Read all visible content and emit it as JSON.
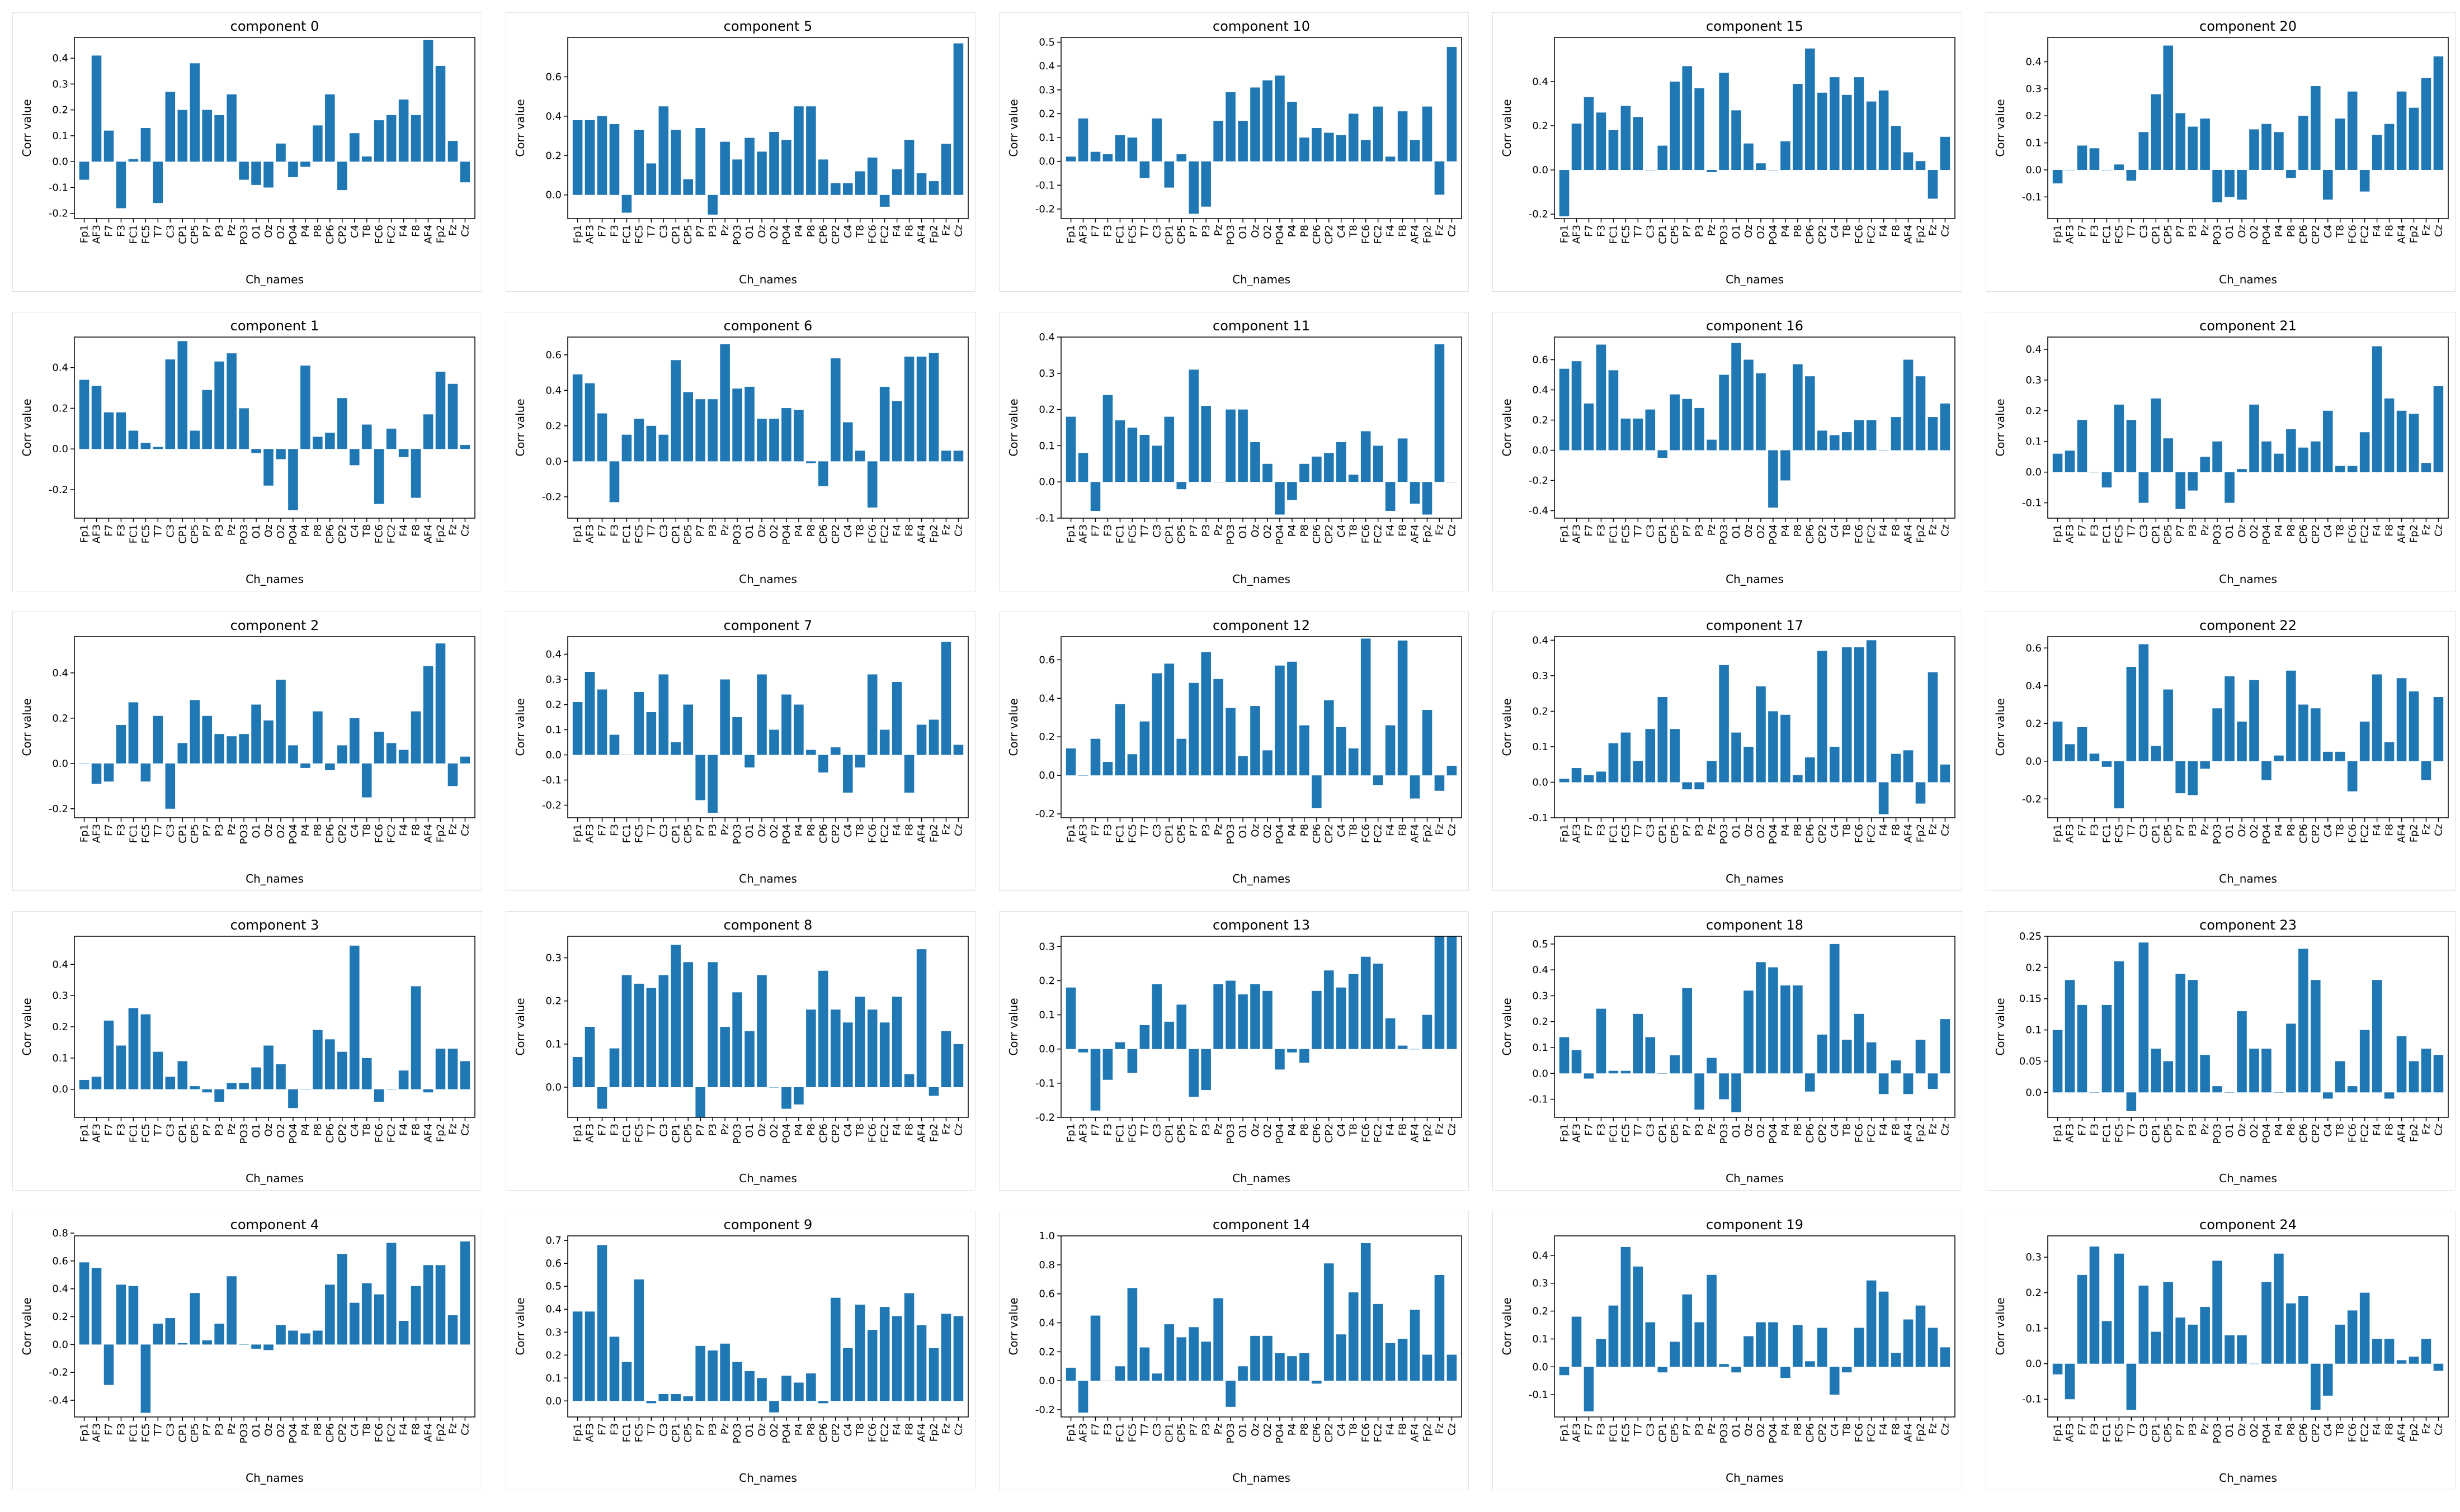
{
  "theme": {
    "bar_color": "#1f77b4",
    "axis_color": "#000000",
    "background": "#ffffff"
  },
  "channels": [
    "Fp1",
    "AF3",
    "F7",
    "F3",
    "FC1",
    "FC5",
    "T7",
    "C3",
    "CP1",
    "CP5",
    "P7",
    "P3",
    "Pz",
    "PO3",
    "O1",
    "Oz",
    "O2",
    "PO4",
    "P4",
    "P8",
    "CP6",
    "CP2",
    "C4",
    "T8",
    "FC6",
    "FC2",
    "F4",
    "F8",
    "AF4",
    "Fp2",
    "Fz",
    "Cz"
  ],
  "chart_data": [
    {
      "type": "bar",
      "title": "component 0",
      "xlabel": "Ch_names",
      "ylabel": "Corr value",
      "ylim": [
        -0.22,
        0.48
      ],
      "yticks": [
        -0.2,
        -0.1,
        0.0,
        0.1,
        0.2,
        0.3,
        0.4
      ],
      "values": [
        -0.07,
        0.41,
        0.12,
        -0.18,
        0.01,
        0.13,
        -0.16,
        0.27,
        0.2,
        0.38,
        0.2,
        0.18,
        0.26,
        -0.07,
        -0.09,
        -0.1,
        0.07,
        -0.06,
        -0.02,
        0.14,
        0.26,
        -0.11,
        0.11,
        0.02,
        0.16,
        0.18,
        0.24,
        0.18,
        0.47,
        0.37,
        0.08,
        -0.08
      ]
    },
    {
      "type": "bar",
      "title": "component 1",
      "xlabel": "Ch_names",
      "ylabel": "Corr value",
      "ylim": [
        -0.34,
        0.55
      ],
      "yticks": [
        -0.2,
        0.0,
        0.2,
        0.4
      ],
      "values": [
        0.34,
        0.31,
        0.18,
        0.18,
        0.09,
        0.03,
        0.01,
        0.44,
        0.53,
        0.09,
        0.29,
        0.43,
        0.47,
        0.2,
        -0.02,
        -0.18,
        -0.05,
        -0.3,
        0.41,
        0.06,
        0.08,
        0.25,
        -0.08,
        0.12,
        -0.27,
        0.1,
        -0.04,
        -0.24,
        0.17,
        0.38,
        0.32,
        0.02
      ]
    },
    {
      "type": "bar",
      "title": "component 2",
      "xlabel": "Ch_names",
      "ylabel": "Corr value",
      "ylim": [
        -0.24,
        0.56
      ],
      "yticks": [
        -0.2,
        0.0,
        0.2,
        0.4
      ],
      "values": [
        0.0,
        -0.09,
        -0.08,
        0.17,
        0.27,
        -0.08,
        0.21,
        -0.2,
        0.09,
        0.28,
        0.21,
        0.13,
        0.12,
        0.13,
        0.26,
        0.19,
        0.37,
        0.08,
        -0.02,
        0.23,
        -0.03,
        0.08,
        0.2,
        -0.15,
        0.14,
        0.09,
        0.06,
        0.23,
        0.43,
        0.53,
        -0.1,
        0.03
      ]
    },
    {
      "type": "bar",
      "title": "component 3",
      "xlabel": "Ch_names",
      "ylabel": "Corr value",
      "ylim": [
        -0.09,
        0.49
      ],
      "yticks": [
        0.0,
        0.1,
        0.2,
        0.3,
        0.4
      ],
      "values": [
        0.03,
        0.04,
        0.22,
        0.14,
        0.26,
        0.24,
        0.12,
        0.04,
        0.09,
        0.01,
        -0.01,
        -0.04,
        0.02,
        0.02,
        0.07,
        0.14,
        0.08,
        -0.06,
        0.0,
        0.19,
        0.16,
        0.12,
        0.46,
        0.1,
        -0.04,
        0.0,
        0.06,
        0.33,
        -0.01,
        0.13,
        0.13,
        0.09
      ]
    },
    {
      "type": "bar",
      "title": "component 4",
      "xlabel": "Ch_names",
      "ylabel": "Corr value",
      "ylim": [
        -0.52,
        0.78
      ],
      "yticks": [
        -0.4,
        -0.2,
        0.0,
        0.2,
        0.4,
        0.6,
        0.8
      ],
      "values": [
        0.59,
        0.55,
        -0.29,
        0.43,
        0.42,
        -0.49,
        0.15,
        0.19,
        0.01,
        0.37,
        0.03,
        0.15,
        0.49,
        0.0,
        -0.03,
        -0.04,
        0.14,
        0.1,
        0.08,
        0.1,
        0.43,
        0.65,
        0.3,
        0.44,
        0.36,
        0.73,
        0.17,
        0.42,
        0.57,
        0.57,
        0.21,
        0.74
      ]
    },
    {
      "type": "bar",
      "title": "component 5",
      "xlabel": "Ch_names",
      "ylabel": "Corr value",
      "ylim": [
        -0.12,
        0.8
      ],
      "yticks": [
        0.0,
        0.2,
        0.4,
        0.6
      ],
      "values": [
        0.38,
        0.38,
        0.4,
        0.36,
        -0.09,
        0.33,
        0.16,
        0.45,
        0.33,
        0.08,
        0.34,
        -0.1,
        0.27,
        0.18,
        0.29,
        0.22,
        0.32,
        0.28,
        0.45,
        0.45,
        0.18,
        0.06,
        0.06,
        0.12,
        0.19,
        -0.06,
        0.13,
        0.28,
        0.11,
        0.07,
        0.26,
        0.77
      ]
    },
    {
      "type": "bar",
      "title": "component 6",
      "xlabel": "Ch_names",
      "ylabel": "Corr value",
      "ylim": [
        -0.32,
        0.7
      ],
      "yticks": [
        -0.2,
        0.0,
        0.2,
        0.4,
        0.6
      ],
      "values": [
        0.49,
        0.44,
        0.27,
        -0.23,
        0.15,
        0.24,
        0.2,
        0.15,
        0.57,
        0.39,
        0.35,
        0.35,
        0.66,
        0.41,
        0.42,
        0.24,
        0.24,
        0.3,
        0.29,
        -0.01,
        -0.14,
        0.58,
        0.22,
        0.06,
        -0.26,
        0.42,
        0.34,
        0.59,
        0.59,
        0.61,
        0.06,
        0.06
      ]
    },
    {
      "type": "bar",
      "title": "component 7",
      "xlabel": "Ch_names",
      "ylabel": "Corr value",
      "ylim": [
        -0.25,
        0.47
      ],
      "yticks": [
        -0.2,
        -0.1,
        0.0,
        0.1,
        0.2,
        0.3,
        0.4
      ],
      "values": [
        0.21,
        0.33,
        0.26,
        0.08,
        0.0,
        0.25,
        0.17,
        0.32,
        0.05,
        0.2,
        -0.18,
        -0.23,
        0.3,
        0.15,
        -0.05,
        0.32,
        0.1,
        0.24,
        0.2,
        0.02,
        -0.07,
        0.03,
        -0.15,
        -0.05,
        0.32,
        0.1,
        0.29,
        -0.15,
        0.12,
        0.14,
        0.45,
        0.04
      ]
    },
    {
      "type": "bar",
      "title": "component 8",
      "xlabel": "Ch_names",
      "ylabel": "Corr value",
      "ylim": [
        -0.07,
        0.35
      ],
      "yticks": [
        0.0,
        0.1,
        0.2,
        0.3
      ],
      "values": [
        0.07,
        0.14,
        -0.05,
        0.09,
        0.26,
        0.24,
        0.23,
        0.26,
        0.33,
        0.29,
        -0.07,
        0.29,
        0.14,
        0.22,
        0.13,
        0.26,
        0.0,
        -0.05,
        -0.04,
        0.18,
        0.27,
        0.18,
        0.15,
        0.21,
        0.18,
        0.15,
        0.21,
        0.03,
        0.32,
        -0.02,
        0.13,
        0.1
      ]
    },
    {
      "type": "bar",
      "title": "component 9",
      "xlabel": "Ch_names",
      "ylabel": "Corr value",
      "ylim": [
        -0.07,
        0.72
      ],
      "yticks": [
        0.0,
        0.1,
        0.2,
        0.3,
        0.4,
        0.5,
        0.6,
        0.7
      ],
      "values": [
        0.39,
        0.39,
        0.68,
        0.28,
        0.17,
        0.53,
        -0.01,
        0.03,
        0.03,
        0.02,
        0.24,
        0.22,
        0.25,
        0.17,
        0.13,
        0.1,
        -0.05,
        0.11,
        0.08,
        0.12,
        -0.01,
        0.45,
        0.23,
        0.42,
        0.31,
        0.41,
        0.37,
        0.47,
        0.33,
        0.23,
        0.38,
        0.37
      ]
    },
    {
      "type": "bar",
      "title": "component 10",
      "xlabel": "Ch_names",
      "ylabel": "Corr value",
      "ylim": [
        -0.24,
        0.52
      ],
      "yticks": [
        -0.2,
        -0.1,
        0.0,
        0.1,
        0.2,
        0.3,
        0.4,
        0.5
      ],
      "values": [
        0.02,
        0.18,
        0.04,
        0.03,
        0.11,
        0.1,
        -0.07,
        0.18,
        -0.11,
        0.03,
        -0.22,
        -0.19,
        0.17,
        0.29,
        0.17,
        0.31,
        0.34,
        0.36,
        0.25,
        0.1,
        0.14,
        0.12,
        0.11,
        0.2,
        0.09,
        0.23,
        0.02,
        0.21,
        0.09,
        0.23,
        -0.14,
        0.48
      ]
    },
    {
      "type": "bar",
      "title": "component 11",
      "xlabel": "Ch_names",
      "ylabel": "Corr value",
      "ylim": [
        -0.1,
        0.4
      ],
      "yticks": [
        -0.1,
        0.0,
        0.1,
        0.2,
        0.3,
        0.4
      ],
      "values": [
        0.18,
        0.08,
        -0.08,
        0.24,
        0.17,
        0.15,
        0.13,
        0.1,
        0.18,
        -0.02,
        0.31,
        0.21,
        0.0,
        0.2,
        0.2,
        0.11,
        0.05,
        -0.09,
        -0.05,
        0.05,
        0.07,
        0.08,
        0.11,
        0.02,
        0.14,
        0.1,
        -0.08,
        0.12,
        -0.06,
        -0.09,
        0.38,
        0.0
      ]
    },
    {
      "type": "bar",
      "title": "component 12",
      "xlabel": "Ch_names",
      "ylabel": "Corr value",
      "ylim": [
        -0.22,
        0.72
      ],
      "yticks": [
        -0.2,
        0.0,
        0.2,
        0.4,
        0.6
      ],
      "values": [
        0.14,
        0.0,
        0.19,
        0.07,
        0.37,
        0.11,
        0.28,
        0.53,
        0.58,
        0.19,
        0.48,
        0.64,
        0.5,
        0.35,
        0.1,
        0.36,
        0.13,
        0.57,
        0.59,
        0.26,
        -0.17,
        0.39,
        0.25,
        0.14,
        0.71,
        -0.05,
        0.26,
        0.7,
        -0.12,
        0.34,
        -0.08,
        0.05
      ]
    },
    {
      "type": "bar",
      "title": "component 13",
      "xlabel": "Ch_names",
      "ylabel": "Corr value",
      "ylim": [
        -0.2,
        0.33
      ],
      "yticks": [
        -0.2,
        -0.1,
        0.0,
        0.1,
        0.2,
        0.3
      ],
      "values": [
        0.18,
        -0.01,
        -0.18,
        -0.09,
        0.02,
        -0.07,
        0.07,
        0.19,
        0.08,
        0.13,
        -0.14,
        -0.12,
        0.19,
        0.2,
        0.16,
        0.19,
        0.17,
        -0.06,
        -0.01,
        -0.04,
        0.17,
        0.23,
        0.18,
        0.22,
        0.27,
        0.25,
        0.09,
        0.01,
        0.0,
        0.1,
        0.33,
        0.33
      ]
    },
    {
      "type": "bar",
      "title": "component 14",
      "xlabel": "Ch_names",
      "ylabel": "Corr value",
      "ylim": [
        -0.25,
        1.0
      ],
      "yticks": [
        -0.2,
        0.0,
        0.2,
        0.4,
        0.6,
        0.8,
        1.0
      ],
      "values": [
        0.09,
        -0.22,
        0.45,
        0.0,
        0.1,
        0.64,
        0.23,
        0.05,
        0.39,
        0.3,
        0.37,
        0.27,
        0.57,
        -0.18,
        0.1,
        0.31,
        0.31,
        0.19,
        0.17,
        0.19,
        -0.02,
        0.81,
        0.32,
        0.61,
        0.95,
        0.53,
        0.26,
        0.29,
        0.49,
        0.18,
        0.73,
        0.18
      ]
    },
    {
      "type": "bar",
      "title": "component 15",
      "xlabel": "Ch_names",
      "ylabel": "Corr value",
      "ylim": [
        -0.22,
        0.6
      ],
      "yticks": [
        -0.2,
        0.0,
        0.2,
        0.4
      ],
      "values": [
        -0.21,
        0.21,
        0.33,
        0.26,
        0.18,
        0.29,
        0.24,
        0.0,
        0.11,
        0.4,
        0.47,
        0.37,
        -0.01,
        0.44,
        0.27,
        0.12,
        0.03,
        0.0,
        0.13,
        0.39,
        0.55,
        0.35,
        0.42,
        0.34,
        0.42,
        0.31,
        0.36,
        0.2,
        0.08,
        0.04,
        -0.13,
        0.15
      ]
    },
    {
      "type": "bar",
      "title": "component 16",
      "xlabel": "Ch_names",
      "ylabel": "Corr value",
      "ylim": [
        -0.45,
        0.75
      ],
      "yticks": [
        -0.4,
        -0.2,
        0.0,
        0.2,
        0.4,
        0.6
      ],
      "values": [
        0.54,
        0.59,
        0.31,
        0.7,
        0.53,
        0.21,
        0.21,
        0.27,
        -0.05,
        0.37,
        0.34,
        0.28,
        0.07,
        0.5,
        0.71,
        0.6,
        0.51,
        -0.38,
        -0.2,
        0.57,
        0.49,
        0.13,
        0.1,
        0.12,
        0.2,
        0.2,
        0.0,
        0.22,
        0.6,
        0.49,
        0.22,
        0.31
      ]
    },
    {
      "type": "bar",
      "title": "component 17",
      "xlabel": "Ch_names",
      "ylabel": "Corr value",
      "ylim": [
        -0.1,
        0.41
      ],
      "yticks": [
        -0.1,
        0.0,
        0.1,
        0.2,
        0.3,
        0.4
      ],
      "values": [
        0.01,
        0.04,
        0.02,
        0.03,
        0.11,
        0.14,
        0.06,
        0.15,
        0.24,
        0.15,
        -0.02,
        -0.02,
        0.06,
        0.33,
        0.14,
        0.1,
        0.27,
        0.2,
        0.19,
        0.02,
        0.07,
        0.37,
        0.1,
        0.38,
        0.38,
        0.4,
        -0.09,
        0.08,
        0.09,
        -0.06,
        0.31,
        0.05
      ]
    },
    {
      "type": "bar",
      "title": "component 18",
      "xlabel": "Ch_names",
      "ylabel": "Corr value",
      "ylim": [
        -0.17,
        0.53
      ],
      "yticks": [
        -0.1,
        0.0,
        0.1,
        0.2,
        0.3,
        0.4,
        0.5
      ],
      "values": [
        0.14,
        0.09,
        -0.02,
        0.25,
        0.01,
        0.01,
        0.23,
        0.14,
        0.0,
        0.07,
        0.33,
        -0.14,
        0.06,
        -0.1,
        -0.15,
        0.32,
        0.43,
        0.41,
        0.34,
        0.34,
        -0.07,
        0.15,
        0.5,
        0.13,
        0.23,
        0.12,
        -0.08,
        0.05,
        -0.08,
        0.13,
        -0.06,
        0.21
      ]
    },
    {
      "type": "bar",
      "title": "component 19",
      "xlabel": "Ch_names",
      "ylabel": "Corr value",
      "ylim": [
        -0.18,
        0.47
      ],
      "yticks": [
        -0.1,
        0.0,
        0.1,
        0.2,
        0.3,
        0.4
      ],
      "values": [
        -0.03,
        0.18,
        -0.16,
        0.1,
        0.22,
        0.43,
        0.36,
        0.16,
        -0.02,
        0.09,
        0.26,
        0.16,
        0.33,
        0.01,
        -0.02,
        0.11,
        0.16,
        0.16,
        -0.04,
        0.15,
        0.02,
        0.14,
        -0.1,
        -0.02,
        0.14,
        0.31,
        0.27,
        0.05,
        0.17,
        0.22,
        0.14,
        0.07
      ]
    },
    {
      "type": "bar",
      "title": "component 20",
      "xlabel": "Ch_names",
      "ylabel": "Corr value",
      "ylim": [
        -0.18,
        0.49
      ],
      "yticks": [
        -0.1,
        0.0,
        0.1,
        0.2,
        0.3,
        0.4
      ],
      "values": [
        -0.05,
        0.0,
        0.09,
        0.08,
        0.0,
        0.02,
        -0.04,
        0.14,
        0.28,
        0.46,
        0.21,
        0.16,
        0.19,
        -0.12,
        -0.1,
        -0.11,
        0.15,
        0.17,
        0.14,
        -0.03,
        0.2,
        0.31,
        -0.11,
        0.19,
        0.29,
        -0.08,
        0.13,
        0.17,
        0.29,
        0.23,
        0.34,
        0.42
      ]
    },
    {
      "type": "bar",
      "title": "component 21",
      "xlabel": "Ch_names",
      "ylabel": "Corr value",
      "ylim": [
        -0.15,
        0.44
      ],
      "yticks": [
        -0.1,
        0.0,
        0.1,
        0.2,
        0.3,
        0.4
      ],
      "values": [
        0.06,
        0.07,
        0.17,
        0.0,
        -0.05,
        0.22,
        0.17,
        -0.1,
        0.24,
        0.11,
        -0.12,
        -0.06,
        0.05,
        0.1,
        -0.1,
        0.01,
        0.22,
        0.1,
        0.06,
        0.14,
        0.08,
        0.1,
        0.2,
        0.02,
        0.02,
        0.13,
        0.41,
        0.24,
        0.2,
        0.19,
        0.03,
        0.28
      ]
    },
    {
      "type": "bar",
      "title": "component 22",
      "xlabel": "Ch_names",
      "ylabel": "Corr value",
      "ylim": [
        -0.3,
        0.66
      ],
      "yticks": [
        -0.2,
        0.0,
        0.2,
        0.4,
        0.6
      ],
      "values": [
        0.21,
        0.09,
        0.18,
        0.04,
        -0.03,
        -0.25,
        0.5,
        0.62,
        0.08,
        0.38,
        -0.17,
        -0.18,
        -0.04,
        0.28,
        0.45,
        0.21,
        0.43,
        -0.1,
        0.03,
        0.48,
        0.3,
        0.28,
        0.05,
        0.05,
        -0.16,
        0.21,
        0.46,
        0.1,
        0.44,
        0.37,
        -0.1,
        0.34
      ]
    },
    {
      "type": "bar",
      "title": "component 23",
      "xlabel": "Ch_names",
      "ylabel": "Corr value",
      "ylim": [
        -0.04,
        0.25
      ],
      "yticks": [
        0.0,
        0.05,
        0.1,
        0.15,
        0.2,
        0.25
      ],
      "values": [
        0.1,
        0.18,
        0.14,
        0.0,
        0.14,
        0.21,
        -0.03,
        0.24,
        0.07,
        0.05,
        0.19,
        0.18,
        0.06,
        0.01,
        0.0,
        0.13,
        0.07,
        0.07,
        0.0,
        0.11,
        0.23,
        0.18,
        -0.01,
        0.05,
        0.01,
        0.1,
        0.18,
        -0.01,
        0.09,
        0.05,
        0.07,
        0.06
      ]
    },
    {
      "type": "bar",
      "title": "component 24",
      "xlabel": "Ch_names",
      "ylabel": "Corr value",
      "ylim": [
        -0.15,
        0.36
      ],
      "yticks": [
        -0.1,
        0.0,
        0.1,
        0.2,
        0.3
      ],
      "values": [
        -0.03,
        -0.1,
        0.25,
        0.33,
        0.12,
        0.31,
        -0.13,
        0.22,
        0.09,
        0.23,
        0.13,
        0.11,
        0.16,
        0.29,
        0.08,
        0.08,
        0.0,
        0.23,
        0.31,
        0.17,
        0.19,
        -0.13,
        -0.09,
        0.11,
        0.15,
        0.2,
        0.07,
        0.07,
        0.01,
        0.02,
        0.07,
        -0.02
      ]
    }
  ]
}
